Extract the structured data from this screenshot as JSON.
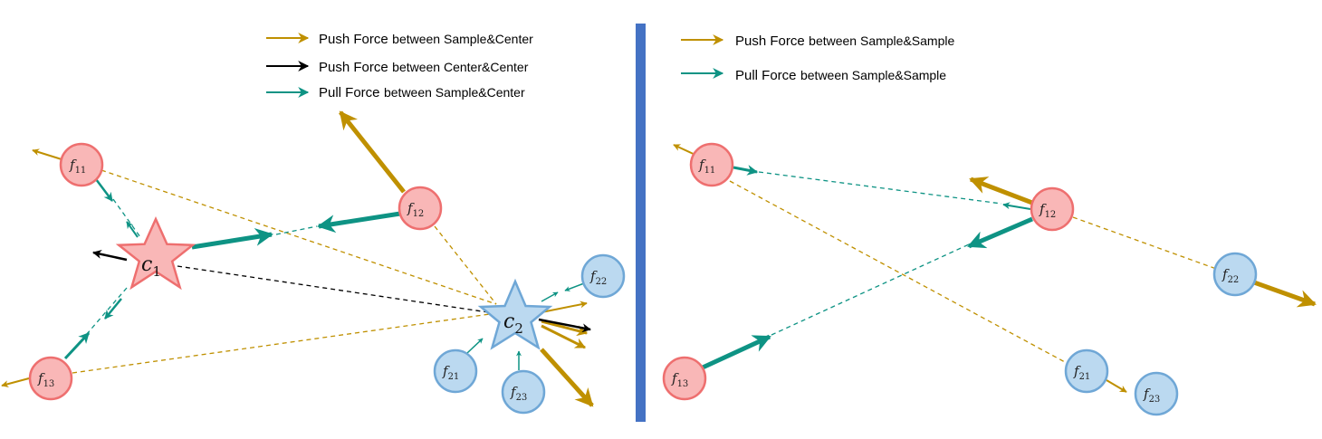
{
  "colors": {
    "push": "#BF9000",
    "center_push": "#000000",
    "pull": "#0E9384",
    "red_fill": "#F9B7B7",
    "red_stroke": "#EE6F6F",
    "blue_fill": "#BBD9F0",
    "blue_stroke": "#6FA7D6",
    "divider": "#4472C4"
  },
  "left_legend": [
    {
      "force": "Push Force",
      "relation": "between Sample&Center",
      "color_key": "push"
    },
    {
      "force": "Push Force",
      "relation": "between Center&Center",
      "color_key": "center_push"
    },
    {
      "force": "Pull Force",
      "relation": "between Sample&Center",
      "color_key": "pull"
    }
  ],
  "right_legend": [
    {
      "force": "Push Force",
      "relation": "between Sample&Sample",
      "color_key": "push"
    },
    {
      "force": "Pull Force",
      "relation": "between Sample&Sample",
      "color_key": "pull"
    }
  ],
  "left_panel": {
    "centers": [
      {
        "id": "c1",
        "letter": "c",
        "sub": "1",
        "group": "red"
      },
      {
        "id": "c2",
        "letter": "c",
        "sub": "2",
        "group": "blue"
      }
    ],
    "samples": [
      {
        "id": "f11",
        "letter": "f",
        "sub": "11",
        "group": "red"
      },
      {
        "id": "f12",
        "letter": "f",
        "sub": "12",
        "group": "red"
      },
      {
        "id": "f13",
        "letter": "f",
        "sub": "13",
        "group": "red"
      },
      {
        "id": "f21",
        "letter": "f",
        "sub": "21",
        "group": "blue"
      },
      {
        "id": "f22",
        "letter": "f",
        "sub": "22",
        "group": "blue"
      },
      {
        "id": "f23",
        "letter": "f",
        "sub": "23",
        "group": "blue"
      }
    ]
  },
  "right_panel": {
    "samples": [
      {
        "id": "f11",
        "letter": "f",
        "sub": "11",
        "group": "red"
      },
      {
        "id": "f12",
        "letter": "f",
        "sub": "12",
        "group": "red"
      },
      {
        "id": "f13",
        "letter": "f",
        "sub": "13",
        "group": "red"
      },
      {
        "id": "f21",
        "letter": "f",
        "sub": "21",
        "group": "blue"
      },
      {
        "id": "f22",
        "letter": "f",
        "sub": "22",
        "group": "blue"
      },
      {
        "id": "f23",
        "letter": "f",
        "sub": "23",
        "group": "blue"
      }
    ]
  }
}
